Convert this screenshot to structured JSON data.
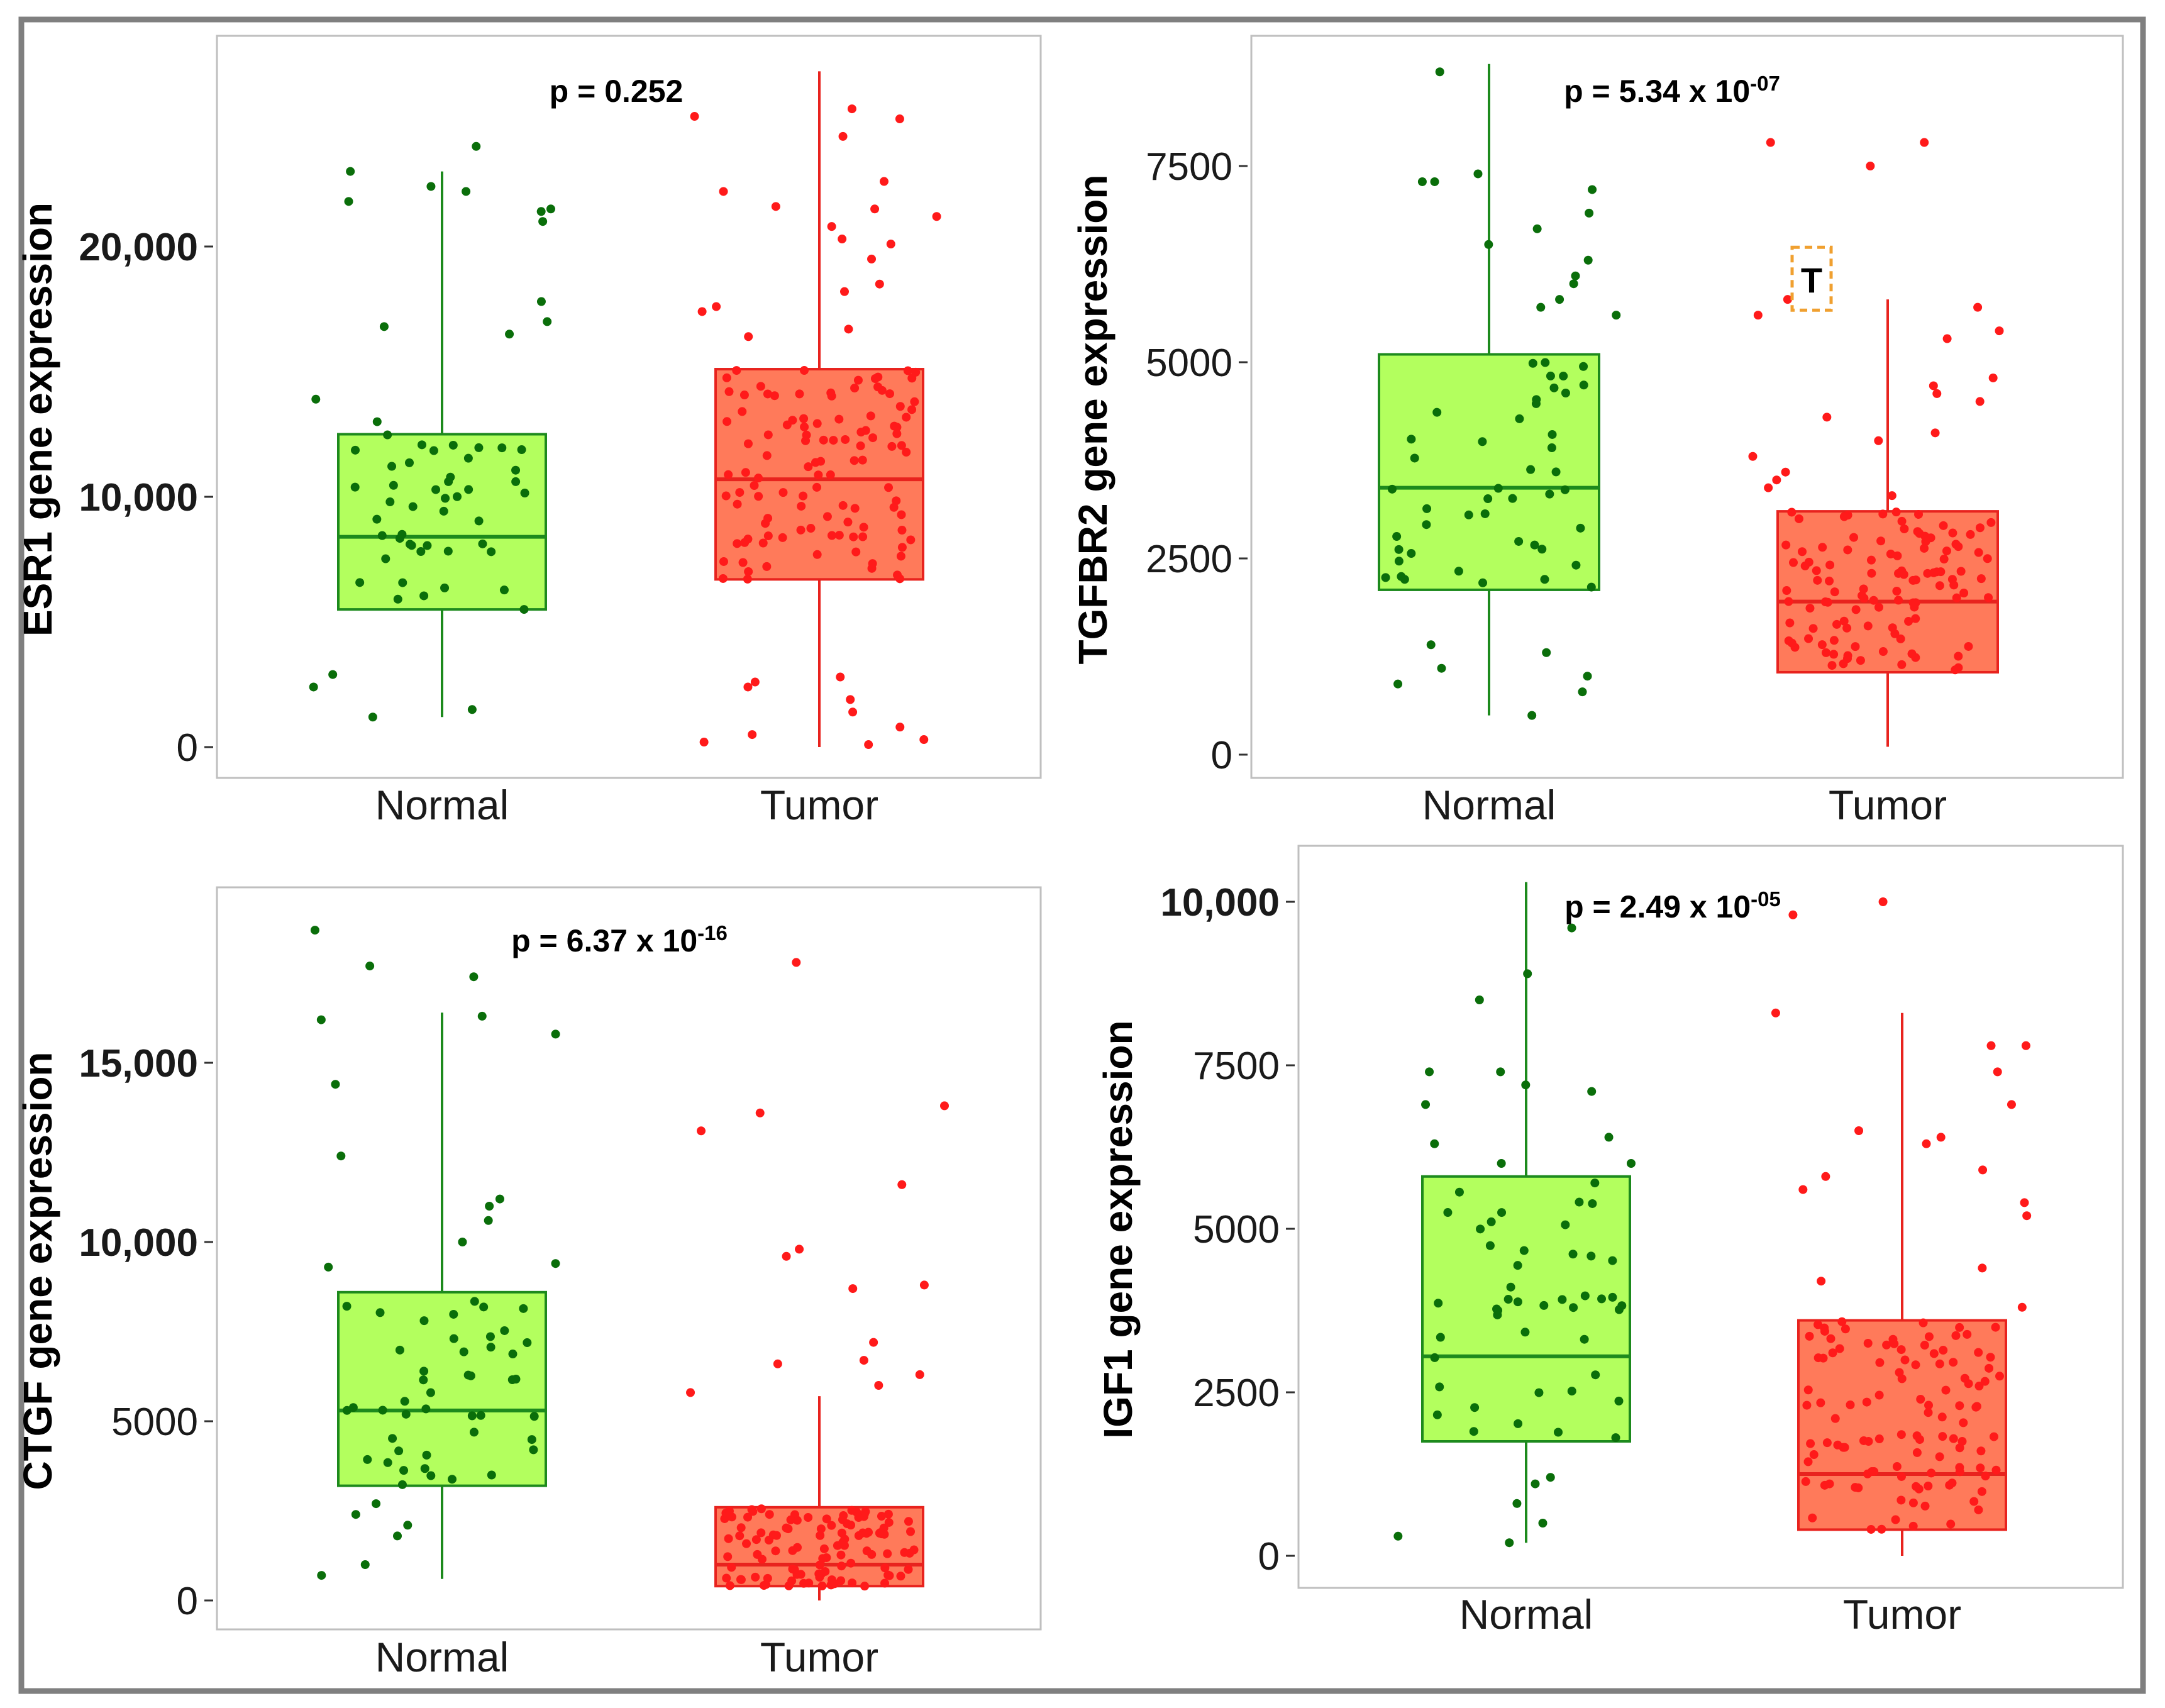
{
  "figure": {
    "background": "#ffffff",
    "frame_color": "#7f7f7f"
  },
  "colors": {
    "normal_fill": "#b3ff5e",
    "normal_stroke": "#1d8a1d",
    "normal_point": "#0a6e0a",
    "tumor_fill": "#ff7a5a",
    "tumor_stroke": "#e8231e",
    "tumor_point": "#ff1a1a",
    "marker_border": "#f0a030"
  },
  "chart_data": [
    {
      "type": "box",
      "title": "",
      "ylabel": "ESR1 gene expression",
      "categories": [
        "Normal",
        "Tumor"
      ],
      "pvalue": {
        "text": "p = 0.252",
        "exponent": ""
      },
      "ylim": [
        -1000,
        28500
      ],
      "yticks": [
        0,
        10000,
        20000
      ],
      "ytick_labels": [
        "0",
        "10,000",
        "20,000"
      ],
      "ytick_bold": [
        false,
        true,
        true
      ],
      "series": [
        {
          "name": "Normal",
          "min": 1200,
          "q1": 5500,
          "median": 8400,
          "q3": 12500,
          "max": 23000,
          "outliers": [
            24000,
            23000,
            22400,
            22200,
            21800,
            21500,
            21400,
            21000,
            17800,
            17000,
            16500,
            16800,
            13900,
            13000,
            2900,
            2400,
            1500,
            1200
          ]
        },
        {
          "name": "Tumor",
          "min": 0,
          "q1": 6700,
          "median": 10700,
          "q3": 15100,
          "max": 27000,
          "outliers": [
            25500,
            25200,
            25100,
            24400,
            22600,
            22200,
            21600,
            21500,
            21200,
            20800,
            20300,
            20100,
            19500,
            18500,
            18200,
            17600,
            17400,
            16700,
            16400,
            2800,
            2600,
            2400,
            1900,
            1400,
            800,
            500,
            300,
            200,
            100
          ]
        }
      ]
    },
    {
      "type": "box",
      "title": "",
      "ylabel": "TGFBR2 gene expression",
      "categories": [
        "Normal",
        "Tumor"
      ],
      "pvalue": {
        "text": "p = 5.34 x 10",
        "exponent": "-07"
      },
      "ylim": [
        -400,
        9200
      ],
      "yticks": [
        0,
        2500,
        5000,
        7500
      ],
      "ytick_labels": [
        "0",
        "2500",
        "5000",
        "7500"
      ],
      "ytick_bold": [
        false,
        false,
        false,
        false
      ],
      "marker": {
        "label": "T",
        "value": 6000
      },
      "series": [
        {
          "name": "Normal",
          "min": 500,
          "q1": 2100,
          "median": 3400,
          "q3": 5100,
          "max": 8800,
          "outliers": [
            8700,
            7400,
            7300,
            7300,
            7200,
            6900,
            6700,
            6500,
            6300,
            6100,
            6000,
            5800,
            5600,
            5700,
            1400,
            1300,
            1100,
            1000,
            900,
            800,
            500
          ]
        },
        {
          "name": "Tumor",
          "min": 100,
          "q1": 1050,
          "median": 1950,
          "q3": 3100,
          "max": 5800,
          "outliers": [
            7800,
            7800,
            7500,
            5800,
            5700,
            5600,
            5400,
            5300,
            4800,
            4700,
            4600,
            4500,
            4300,
            4100,
            4000,
            3800,
            3600,
            3500,
            3400,
            3300
          ]
        }
      ]
    },
    {
      "type": "box",
      "title": "",
      "ylabel": "CTGF gene expression",
      "categories": [
        "Normal",
        "Tumor"
      ],
      "pvalue": {
        "text": "p = 6.37 x 10",
        "exponent": "-16"
      },
      "ylim": [
        -800,
        19800
      ],
      "yticks": [
        0,
        5000,
        10000,
        15000
      ],
      "ytick_labels": [
        "0",
        "5000",
        "10,000",
        "15,000"
      ],
      "ytick_bold": [
        false,
        false,
        true,
        true
      ],
      "series": [
        {
          "name": "Normal",
          "min": 600,
          "q1": 3200,
          "median": 5300,
          "q3": 8600,
          "max": 16400,
          "outliers": [
            18700,
            17700,
            17400,
            16300,
            16200,
            15800,
            14400,
            12400,
            11200,
            11000,
            10600,
            10000,
            9400,
            9300,
            2700,
            2400,
            2100,
            1800,
            1000,
            700
          ]
        },
        {
          "name": "Tumor",
          "min": 0,
          "q1": 400,
          "median": 1000,
          "q3": 2600,
          "max": 5700,
          "outliers": [
            17800,
            13800,
            13600,
            13100,
            11600,
            9800,
            9600,
            8800,
            8700,
            7200,
            6700,
            6600,
            6300,
            6000,
            5800
          ]
        }
      ]
    },
    {
      "type": "box",
      "title": "",
      "ylabel": "IGF1 gene expression",
      "categories": [
        "Normal",
        "Tumor"
      ],
      "pvalue": {
        "text": "p = 2.49 x 10",
        "exponent": "-05"
      },
      "ylim": [
        -500,
        10800
      ],
      "yticks": [
        0,
        2500,
        5000,
        7500,
        10000
      ],
      "ytick_labels": [
        "0",
        "2500",
        "5000",
        "7500",
        "10,000"
      ],
      "ytick_bold": [
        false,
        false,
        false,
        false,
        true
      ],
      "series": [
        {
          "name": "Normal",
          "min": 200,
          "q1": 1750,
          "median": 3050,
          "q3": 5800,
          "max": 10300,
          "outliers": [
            9600,
            8900,
            8500,
            7400,
            7400,
            7200,
            7100,
            6900,
            6400,
            6300,
            6000,
            6000,
            1200,
            1100,
            800,
            500,
            300,
            200
          ]
        },
        {
          "name": "Tumor",
          "min": 0,
          "q1": 400,
          "median": 1250,
          "q3": 3600,
          "max": 8300,
          "outliers": [
            10000,
            9800,
            8300,
            7800,
            7800,
            7400,
            6900,
            6500,
            6400,
            6300,
            5900,
            5800,
            5600,
            5400,
            5200,
            4400,
            4200,
            3800
          ]
        }
      ]
    }
  ]
}
